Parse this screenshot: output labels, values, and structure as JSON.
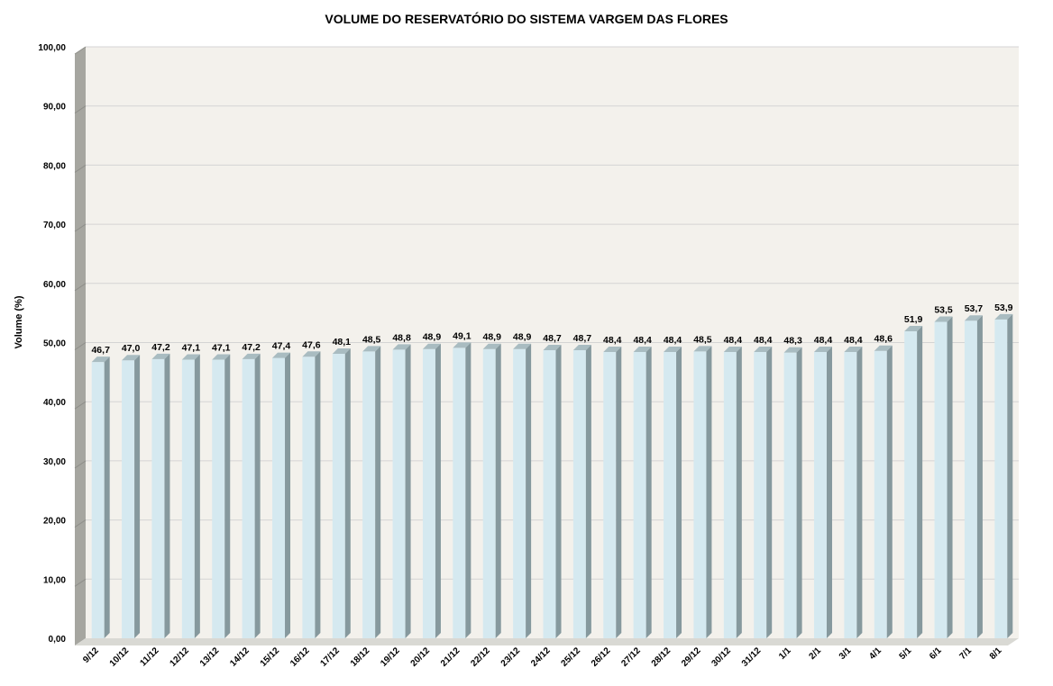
{
  "chart_data": {
    "type": "bar",
    "title": "VOLUME DO RESERVATÓRIO DO SISTEMA VARGEM DAS FLORES",
    "ylabel": "Volume (%)",
    "xlabel": "",
    "ylim": [
      0,
      100
    ],
    "yticks": [
      "0,00",
      "10,00",
      "20,00",
      "30,00",
      "40,00",
      "50,00",
      "60,00",
      "70,00",
      "80,00",
      "90,00",
      "100,00"
    ],
    "categories": [
      "9/12",
      "10/12",
      "11/12",
      "12/12",
      "13/12",
      "14/12",
      "15/12",
      "16/12",
      "17/12",
      "18/12",
      "19/12",
      "20/12",
      "21/12",
      "22/12",
      "23/12",
      "24/12",
      "25/12",
      "26/12",
      "27/12",
      "28/12",
      "29/12",
      "30/12",
      "31/12",
      "1/1",
      "2/1",
      "3/1",
      "4/1",
      "5/1",
      "6/1",
      "7/1",
      "8/1"
    ],
    "values": [
      46.7,
      47.0,
      47.2,
      47.1,
      47.1,
      47.2,
      47.4,
      47.6,
      48.1,
      48.5,
      48.8,
      48.9,
      49.1,
      48.9,
      48.9,
      48.7,
      48.7,
      48.4,
      48.4,
      48.4,
      48.5,
      48.4,
      48.4,
      48.3,
      48.4,
      48.4,
      48.6,
      51.9,
      53.5,
      53.7,
      53.9
    ],
    "data_labels": [
      "46,7",
      "47,0",
      "47,2",
      "47,1",
      "47,1",
      "47,2",
      "47,4",
      "47,6",
      "48,1",
      "48,5",
      "48,8",
      "48,9",
      "49,1",
      "48,9",
      "48,9",
      "48,7",
      "48,7",
      "48,4",
      "48,4",
      "48,4",
      "48,5",
      "48,4",
      "48,4",
      "48,3",
      "48,4",
      "48,4",
      "48,6",
      "51,9",
      "53,5",
      "53,7",
      "53,9"
    ],
    "grid": true,
    "legend": "none",
    "colors": {
      "bar_front": "#d5e9f0",
      "bar_side": "#86999e",
      "bar_top": "#a9bcc1",
      "wall": "#f3f1ec",
      "side_wall": "#a6a6a0",
      "floor": "#d9d9d4",
      "grid": "#d4d4d4"
    }
  }
}
